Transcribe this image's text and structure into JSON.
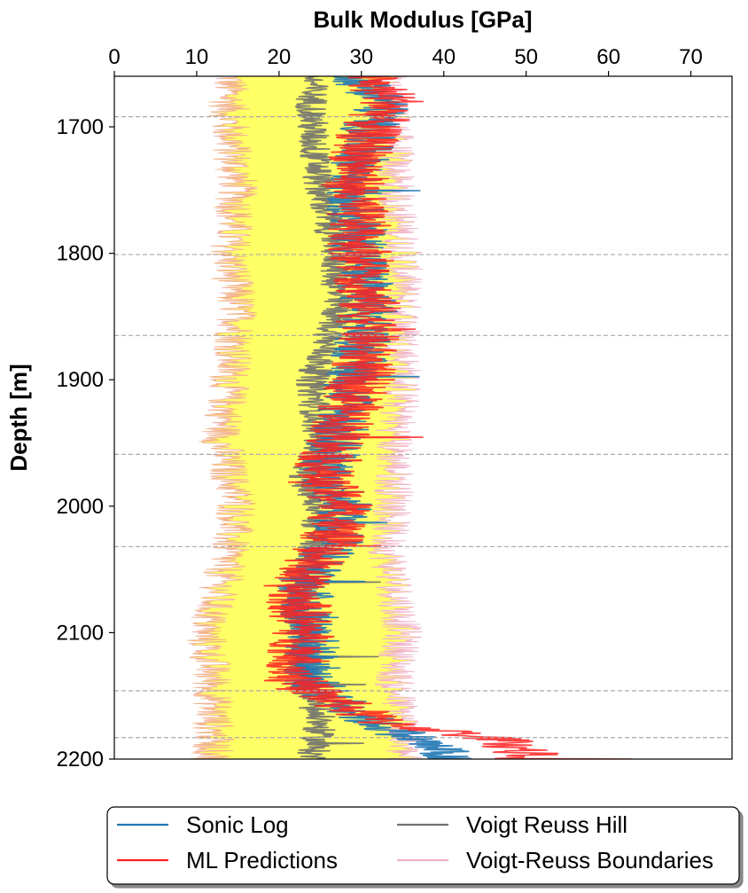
{
  "chart_data": {
    "type": "line",
    "orientation": "vertical-depth-track",
    "xlabel": "Bulk Modulus [GPa]",
    "ylabel": "Depth [m]",
    "xlim": [
      0,
      75
    ],
    "ylim": [
      2200,
      1660
    ],
    "y_inverted": true,
    "x_ticks": [
      0,
      10,
      20,
      30,
      40,
      50,
      60,
      70
    ],
    "y_ticks": [
      1700,
      1800,
      1900,
      2000,
      2100,
      2200
    ],
    "x_axis_position": "top",
    "grid": false,
    "formation_tops": [
      1692,
      1801,
      1865,
      1959,
      2032,
      2146,
      2183
    ],
    "legend": {
      "placement": "bottom-outside",
      "columns": 2,
      "frame": "rounded-with-shadow"
    },
    "series": [
      {
        "name": "Voigt-Reuss Boundaries",
        "color": "#f0b0cc",
        "fill_color": "#ffff66",
        "depth": [
          1665,
          1700,
          1750,
          1800,
          1850,
          1900,
          1950,
          2000,
          2030,
          2060,
          2100,
          2140,
          2170,
          2200
        ],
        "lower": [
          14,
          14,
          15,
          14,
          15,
          14,
          13,
          15,
          14,
          13,
          11,
          12,
          12,
          12
        ],
        "upper": [
          33,
          34,
          34,
          35,
          35,
          35,
          34,
          34,
          33,
          34,
          35,
          34,
          35,
          35
        ]
      },
      {
        "name": "Voigt Reuss Hill",
        "color": "#707070",
        "depth": [
          1665,
          1700,
          1750,
          1800,
          1850,
          1900,
          1950,
          1980,
          2000,
          2040,
          2080,
          2100,
          2140,
          2170,
          2200
        ],
        "values": [
          24,
          24,
          25,
          27,
          27,
          24,
          25,
          23,
          25,
          24,
          22,
          23,
          23,
          25,
          24
        ]
      },
      {
        "name": "Sonic Log",
        "color": "#1f77b4",
        "depth": [
          1665,
          1680,
          1700,
          1750,
          1800,
          1850,
          1900,
          1950,
          1980,
          2000,
          2030,
          2060,
          2100,
          2140,
          2170,
          2185,
          2195
        ],
        "values": [
          30,
          33,
          31,
          29,
          30,
          31,
          29,
          27,
          25,
          28,
          27,
          23,
          24,
          24,
          31,
          37,
          40
        ]
      },
      {
        "name": "ML Predictions",
        "color": "#ff2020",
        "depth": [
          1665,
          1680,
          1700,
          1750,
          1800,
          1850,
          1900,
          1950,
          1980,
          2000,
          2030,
          2060,
          2100,
          2140,
          2170,
          2185,
          2195
        ],
        "values": [
          31,
          34,
          31,
          29,
          30,
          31,
          30,
          27,
          25,
          28,
          26,
          22,
          23,
          22,
          32,
          47,
          50
        ]
      }
    ]
  }
}
